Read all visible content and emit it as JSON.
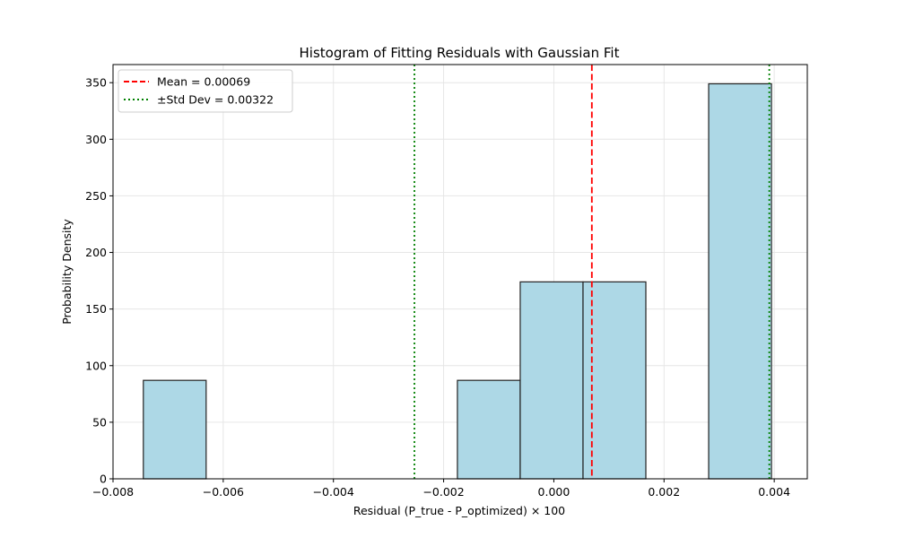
{
  "chart_data": {
    "type": "bar",
    "title": "Histogram of Fitting Residuals with Gaussian Fit",
    "xlabel": "Residual (P_true - P_optimized) × 100",
    "ylabel": "Probability Density",
    "xlim": [
      -0.008,
      0.0046
    ],
    "ylim": [
      0,
      366
    ],
    "xticks": [
      -0.008,
      -0.006,
      -0.004,
      -0.002,
      0.0,
      0.002,
      0.004
    ],
    "xtick_labels": [
      "−0.008",
      "−0.006",
      "−0.004",
      "−0.002",
      "0.000",
      "0.002",
      "0.004"
    ],
    "yticks": [
      0,
      50,
      100,
      150,
      200,
      250,
      300,
      350
    ],
    "ytick_labels": [
      "0",
      "50",
      "100",
      "150",
      "200",
      "250",
      "300",
      "350"
    ],
    "bins": [
      {
        "x0": -0.00745,
        "x1": -0.00631,
        "value": 87
      },
      {
        "x0": -0.00631,
        "x1": -0.00517,
        "value": 0
      },
      {
        "x0": -0.00517,
        "x1": -0.00403,
        "value": 0
      },
      {
        "x0": -0.00403,
        "x1": -0.00289,
        "value": 0
      },
      {
        "x0": -0.00289,
        "x1": -0.00175,
        "value": 0
      },
      {
        "x0": -0.00175,
        "x1": -0.00061,
        "value": 87
      },
      {
        "x0": -0.00061,
        "x1": 0.00053,
        "value": 174
      },
      {
        "x0": 0.00053,
        "x1": 0.00167,
        "value": 174
      },
      {
        "x0": 0.00167,
        "x1": 0.00281,
        "value": 0
      },
      {
        "x0": 0.00281,
        "x1": 0.00395,
        "value": 349
      }
    ],
    "vlines": [
      {
        "x": 0.00069,
        "style": "dashed",
        "color": "#ff0000"
      },
      {
        "x": -0.00253,
        "style": "dotted",
        "color": "#008000"
      },
      {
        "x": 0.00391,
        "style": "dotted",
        "color": "#008000"
      }
    ],
    "legend": {
      "placement": "top-left",
      "entries": [
        {
          "label": "Mean = 0.00069",
          "style": "dashed",
          "color": "#ff0000"
        },
        {
          "label": "±Std Dev = 0.00322",
          "style": "dotted",
          "color": "#008000"
        }
      ]
    },
    "grid": true,
    "colors": {
      "bar_fill": "#add8e6",
      "bar_edge": "#222222",
      "grid": "#e6e6e6",
      "axis": "#000000"
    }
  }
}
